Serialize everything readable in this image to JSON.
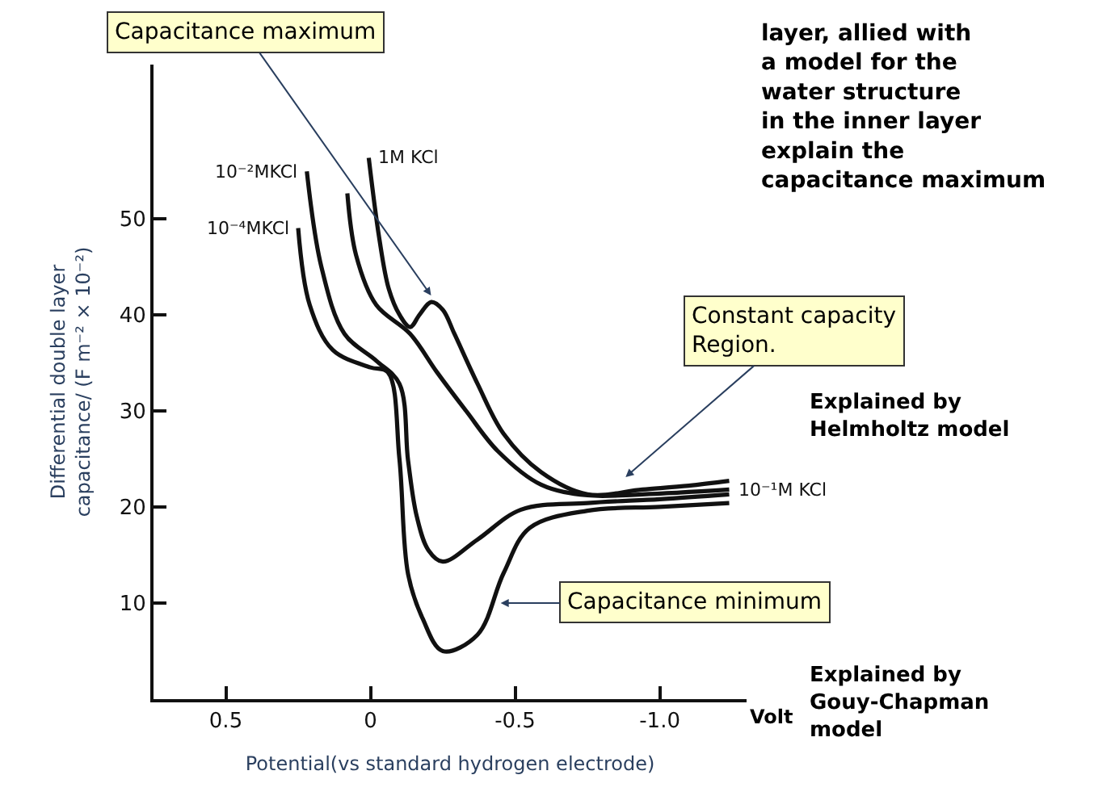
{
  "chart_data": {
    "type": "line",
    "xlabel": "Potential(vs standard hydrogen electrode)",
    "ylabel": "Differential double layer\ncapacitance/ (F m⁻² × 10⁻²)",
    "xlim": [
      0.75,
      -1.3
    ],
    "ylim": [
      0,
      66
    ],
    "xticks": [
      {
        "value": 0.5,
        "label": "0.5"
      },
      {
        "value": 0,
        "label": "0"
      },
      {
        "value": -0.5,
        "label": "-0.5"
      },
      {
        "value": -1.0,
        "label": "-1.0"
      }
    ],
    "yticks": [
      10,
      20,
      30,
      40,
      50
    ],
    "legend": false,
    "marker": "none",
    "line_style": "solid",
    "series": [
      {
        "name": "1M KCl",
        "color": "#111111",
        "x": [
          0.006,
          -0.03,
          -0.063,
          -0.1,
          -0.137,
          -0.17,
          -0.21,
          -0.25,
          -0.29,
          -0.37,
          -0.46,
          -0.59,
          -0.75,
          -0.94,
          -1.1,
          -1.24
        ],
        "values": [
          56.3,
          48,
          42.7,
          40,
          38.7,
          40,
          41.3,
          40.5,
          38,
          32.8,
          27.6,
          23.6,
          21.3,
          21.8,
          22.2,
          22.7
        ]
      },
      {
        "name": "10⁻¹M KCl",
        "color": "#111111",
        "x": [
          0.08,
          0.05,
          -0.02,
          -0.137,
          -0.23,
          -0.33,
          -0.44,
          -0.59,
          -0.75,
          -0.94,
          -1.24
        ],
        "values": [
          52.6,
          46.2,
          41,
          38,
          34,
          30,
          25.8,
          22.3,
          21.2,
          21.3,
          21.8
        ]
      },
      {
        "name": "10⁻²MKCl",
        "color": "#111111",
        "x": [
          0.22,
          0.17,
          0.09,
          -0.02,
          -0.1,
          -0.13,
          -0.16,
          -0.2,
          -0.25,
          -0.37,
          -0.52,
          -0.75,
          -1.0,
          -1.24
        ],
        "values": [
          54.9,
          45,
          38,
          35.2,
          32.8,
          24.8,
          19,
          15.5,
          14.3,
          16.6,
          19.7,
          20.4,
          20.8,
          21.3
        ]
      },
      {
        "name": "10⁻⁴MKCl",
        "color": "#111111",
        "x": [
          0.25,
          0.21,
          0.13,
          0.0,
          -0.06,
          -0.1,
          -0.13,
          -0.18,
          -0.25,
          -0.37,
          -0.46,
          -0.55,
          -0.75,
          -1.0,
          -1.24
        ],
        "values": [
          49,
          41,
          36.3,
          34.5,
          34,
          25,
          13,
          8.4,
          5,
          6.7,
          13.1,
          17.8,
          19.6,
          20,
          20.4
        ]
      }
    ],
    "annotations": [
      "Capacitance maximum",
      "Constant capacity\nRegion.",
      {
        "text": "Capacitance minimum",
        "x": -0.45,
        "y": 10
      },
      "layer, allied with\na model for the\nwater structure\nin the inner layer\nexplain the\ncapacitance maximum",
      "Explained by\nHelmholtz model",
      "Explained by\nGouy-Chapman\nmodel",
      "Volt"
    ]
  }
}
